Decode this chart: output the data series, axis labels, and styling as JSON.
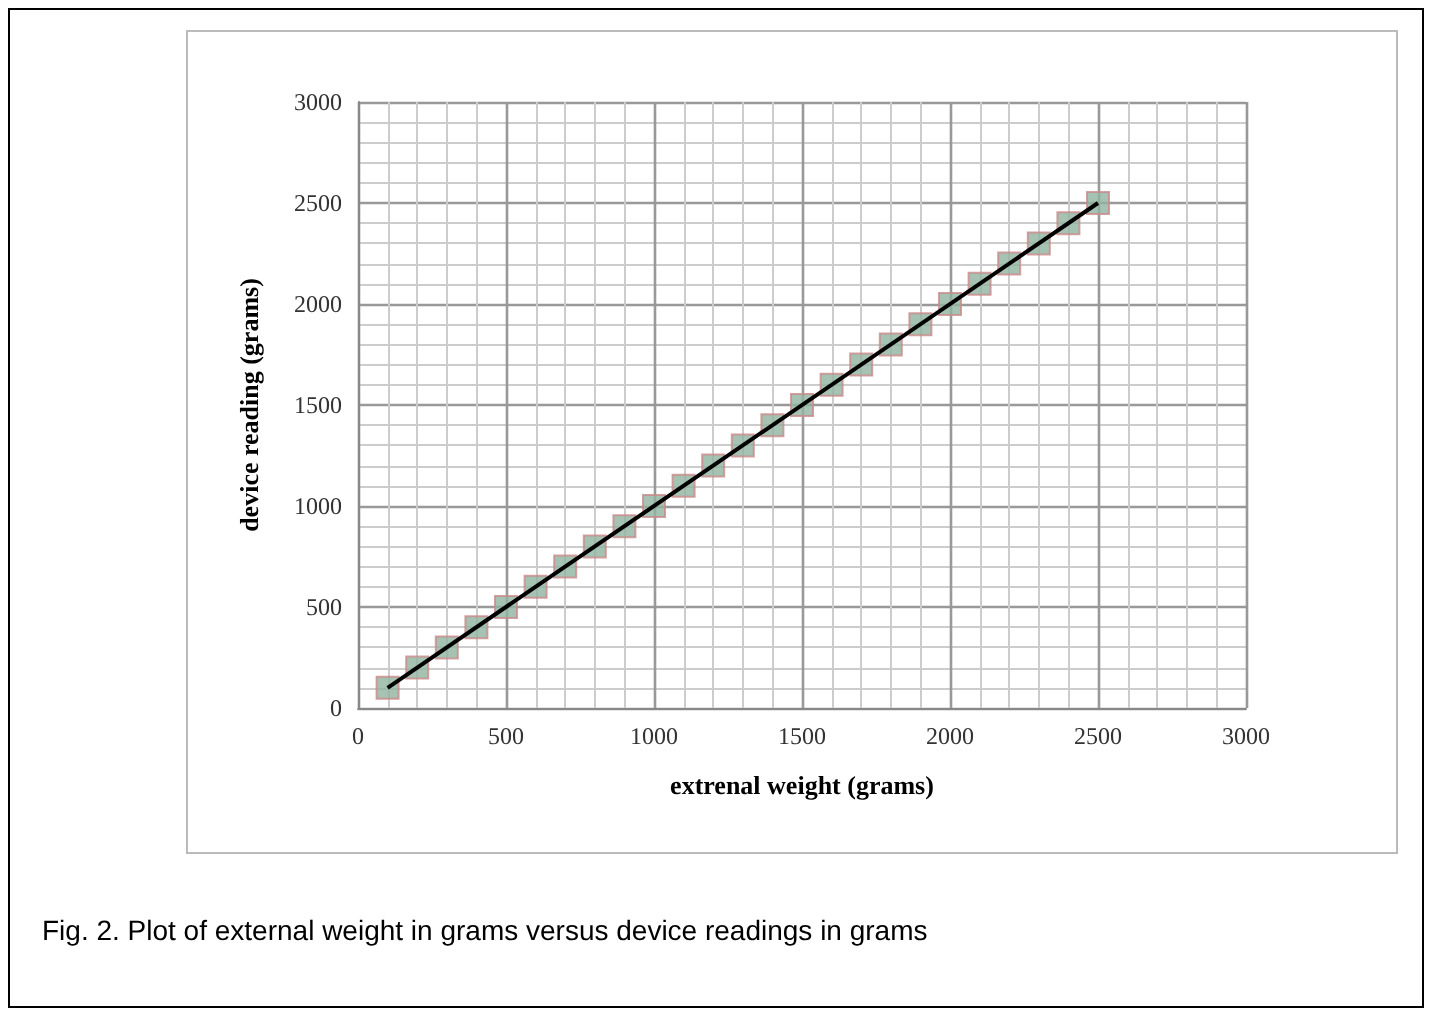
{
  "chart_data": {
    "type": "scatter",
    "xlabel": "extrenal weight (grams)",
    "ylabel": "device reading (grams)",
    "annotations": [
      "Fig. 2. Plot of external weight in grams versus device readings in grams"
    ],
    "x": [
      100,
      200,
      300,
      400,
      500,
      600,
      700,
      800,
      900,
      1000,
      1100,
      1200,
      1300,
      1400,
      1500,
      1600,
      1700,
      1800,
      1900,
      2000,
      2100,
      2200,
      2300,
      2400,
      2500
    ],
    "series": [
      {
        "color": "#8fb3a0",
        "marker": "square",
        "values": [
          100,
          200,
          300,
          400,
          500,
          600,
          700,
          800,
          900,
          1000,
          1100,
          1200,
          1300,
          1400,
          1500,
          1600,
          1700,
          1800,
          1900,
          2000,
          2100,
          2200,
          2300,
          2400,
          2500
        ]
      },
      {
        "type": "line",
        "color": "#000000",
        "marker": "none",
        "x": [
          100,
          2500
        ],
        "values": [
          100,
          2500
        ]
      }
    ],
    "xlim": [
      0,
      3000
    ],
    "ylim": [
      0,
      3000
    ],
    "xticks": [
      0,
      500,
      1000,
      1500,
      2000,
      2500,
      3000
    ],
    "yticks": [
      0,
      500,
      1000,
      1500,
      2000,
      2500,
      3000
    ],
    "grid": true
  }
}
